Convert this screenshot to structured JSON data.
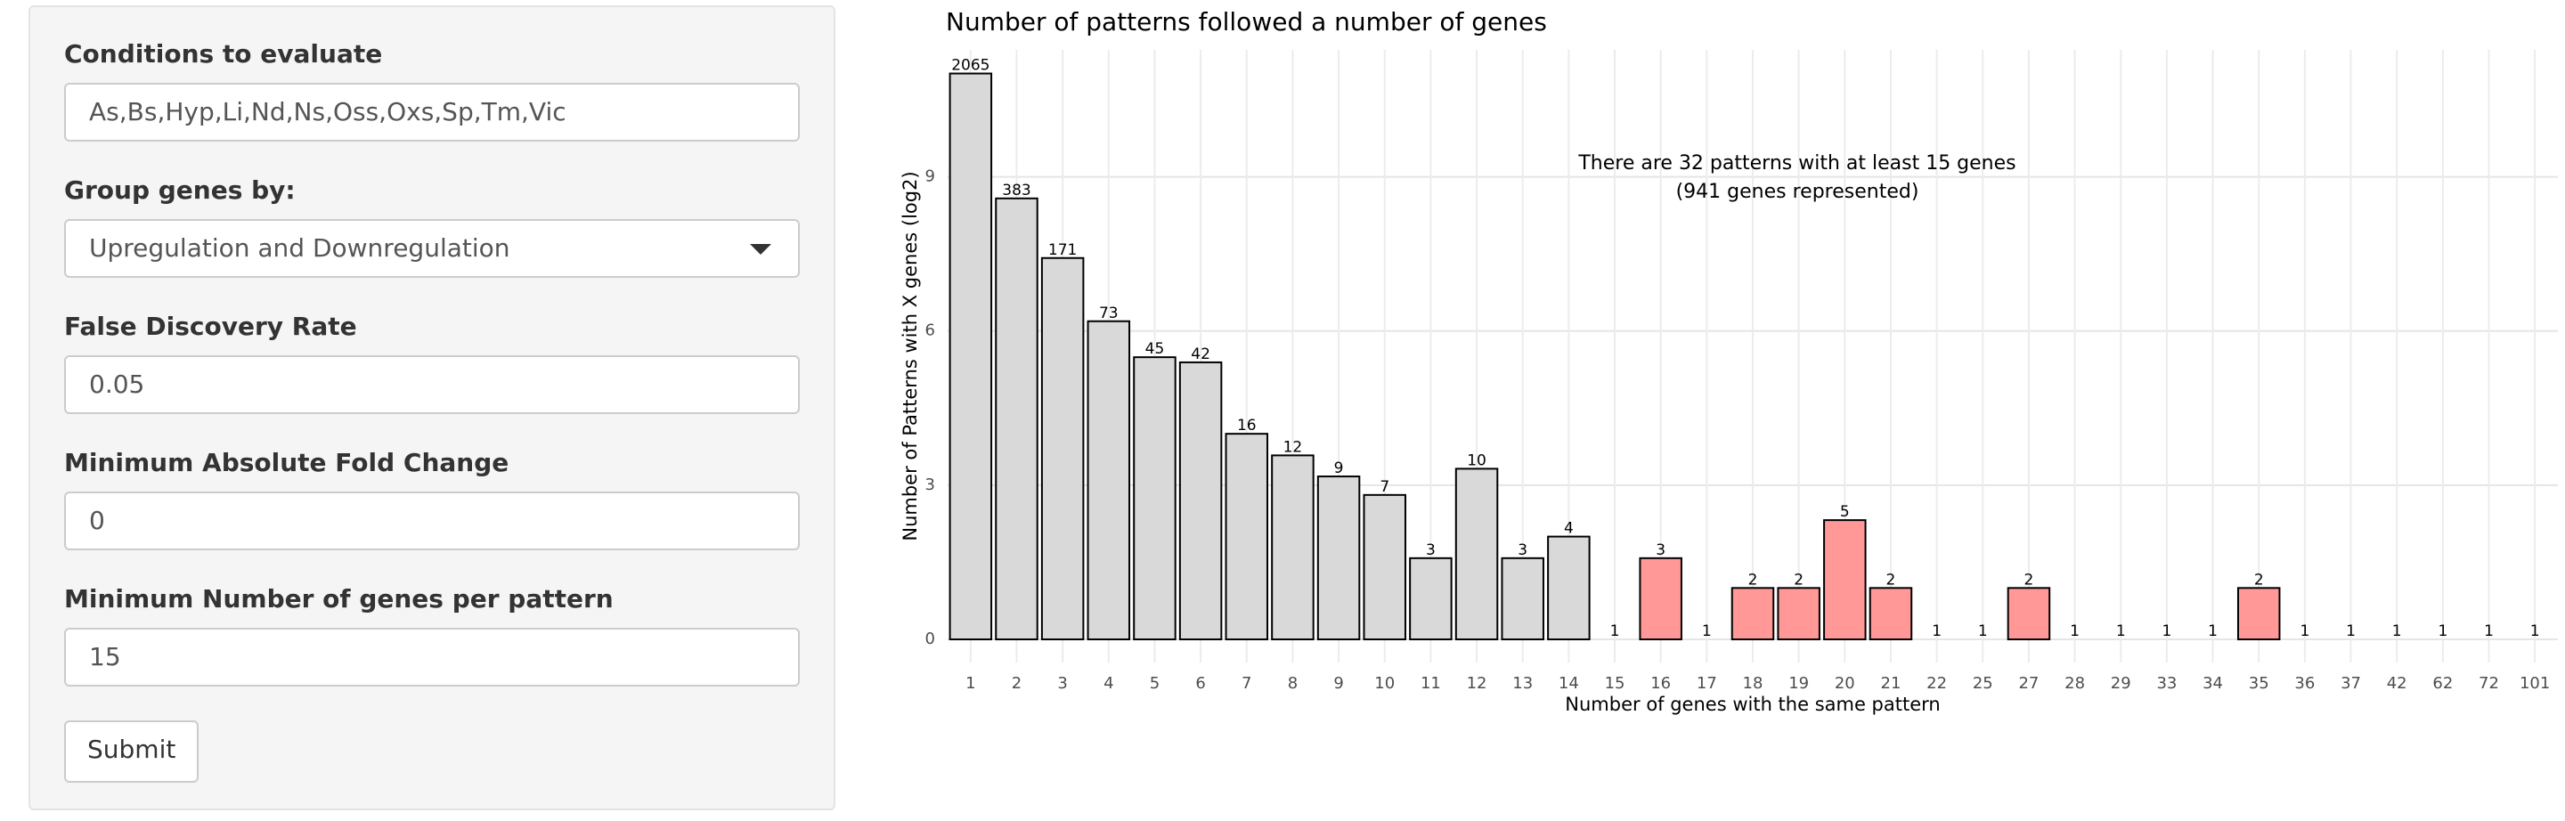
{
  "form": {
    "fields": [
      {
        "label": "Conditions to evaluate",
        "value": "As,Bs,Hyp,Li,Nd,Ns,Oss,Oxs,Sp,Tm,Vic"
      },
      {
        "label": "Group genes by:",
        "value": "Upregulation and Downregulation"
      },
      {
        "label": "False Discovery Rate",
        "value": "0.05"
      },
      {
        "label": "Minimum Absolute Fold Change",
        "value": "0"
      },
      {
        "label": "Minimum Number of genes per pattern",
        "value": "15"
      }
    ],
    "submit": "Submit"
  },
  "chart_data": {
    "type": "bar",
    "title": "Number of patterns followed a number of genes",
    "xlabel": "Number of genes with the same pattern",
    "ylabel": "Number of Patterns with X genes (log2)",
    "annotations": [
      "There are 32 patterns with at least 15 genes",
      "(941 genes represented)"
    ],
    "categories": [
      "1",
      "2",
      "3",
      "4",
      "5",
      "6",
      "7",
      "8",
      "9",
      "10",
      "11",
      "12",
      "13",
      "14",
      "15",
      "16",
      "17",
      "18",
      "19",
      "20",
      "21",
      "22",
      "25",
      "27",
      "28",
      "29",
      "33",
      "34",
      "35",
      "36",
      "37",
      "42",
      "62",
      "72",
      "101"
    ],
    "values": [
      11.01,
      8.58,
      7.42,
      6.19,
      5.49,
      5.39,
      4,
      3.58,
      3.17,
      2.81,
      1.58,
      3.32,
      1.58,
      2,
      0,
      1.58,
      0,
      1,
      1,
      2.32,
      1,
      0,
      0,
      1,
      0,
      0,
      0,
      0,
      1,
      0,
      0,
      0,
      0,
      0,
      0
    ],
    "value_labels": [
      "2065",
      "383",
      "171",
      "73",
      "45",
      "42",
      "16",
      "12",
      "9",
      "7",
      "3",
      "10",
      "3",
      "4",
      "1",
      "3",
      "1",
      "2",
      "2",
      "5",
      "2",
      "1",
      "1",
      "2",
      "1",
      "1",
      "1",
      "1",
      "2",
      "1",
      "1",
      "1",
      "1",
      "1",
      "1"
    ],
    "colors": [
      "#d9d9d9",
      "#d9d9d9",
      "#d9d9d9",
      "#d9d9d9",
      "#d9d9d9",
      "#d9d9d9",
      "#d9d9d9",
      "#d9d9d9",
      "#d9d9d9",
      "#d9d9d9",
      "#d9d9d9",
      "#d9d9d9",
      "#d9d9d9",
      "#d9d9d9",
      "#ff9896",
      "#ff9896",
      "#ff9896",
      "#ff9896",
      "#ff9896",
      "#ff9896",
      "#ff9896",
      "#ff9896",
      "#ff9896",
      "#ff9896",
      "#ff9896",
      "#ff9896",
      "#ff9896",
      "#ff9896",
      "#ff9896",
      "#ff9896",
      "#ff9896",
      "#ff9896",
      "#ff9896",
      "#ff9896",
      "#ff9896"
    ],
    "ylim": [
      -0.45,
      11.47
    ],
    "yticks": [
      0,
      3,
      6,
      9
    ],
    "grid": true
  }
}
